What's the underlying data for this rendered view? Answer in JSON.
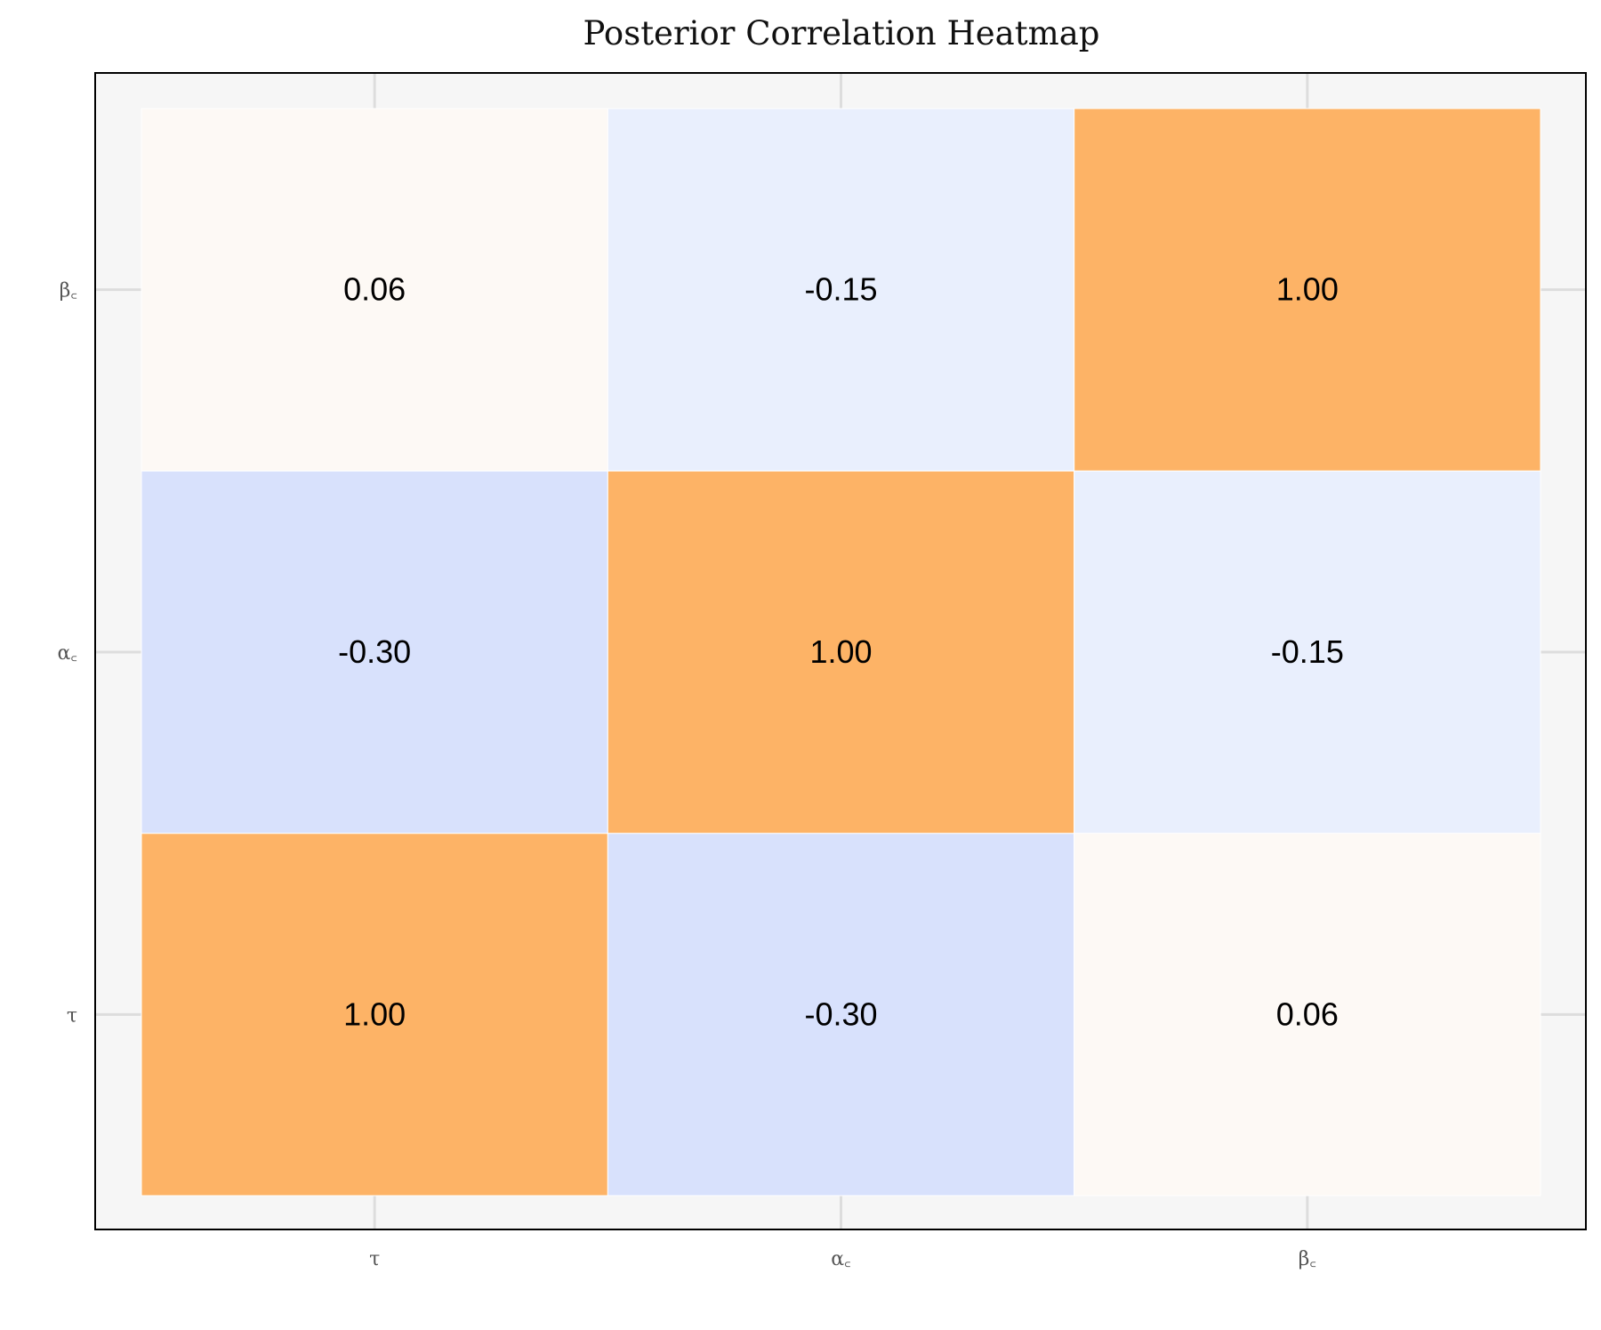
{
  "chart_data": {
    "type": "heatmap",
    "title": "Posterior Correlation Heatmap",
    "xlabel": "",
    "ylabel": "",
    "x_categories": [
      "τ",
      "α꜀",
      "β꜀"
    ],
    "y_categories": [
      "τ",
      "α꜀",
      "β꜀"
    ],
    "y_order": "bottom-to-top",
    "values": [
      [
        1.0,
        -0.3,
        0.06
      ],
      [
        -0.3,
        1.0,
        -0.15
      ],
      [
        0.06,
        -0.15,
        1.0
      ]
    ],
    "labels": [
      [
        "1.00",
        "-0.30",
        "0.06"
      ],
      [
        "-0.30",
        "1.00",
        "-0.15"
      ],
      [
        "0.06",
        "-0.15",
        "1.00"
      ]
    ],
    "grid": true,
    "colors": {
      "positive_strong": "#fdb366",
      "positive_weak": "#fdf9f5",
      "negative_mid": "#d8e1fc",
      "negative_weak": "#e9effd",
      "background": "#f6f6f6",
      "frame": "#000000",
      "gridline": "#dddddd",
      "cell_border": "#ffffff"
    }
  }
}
